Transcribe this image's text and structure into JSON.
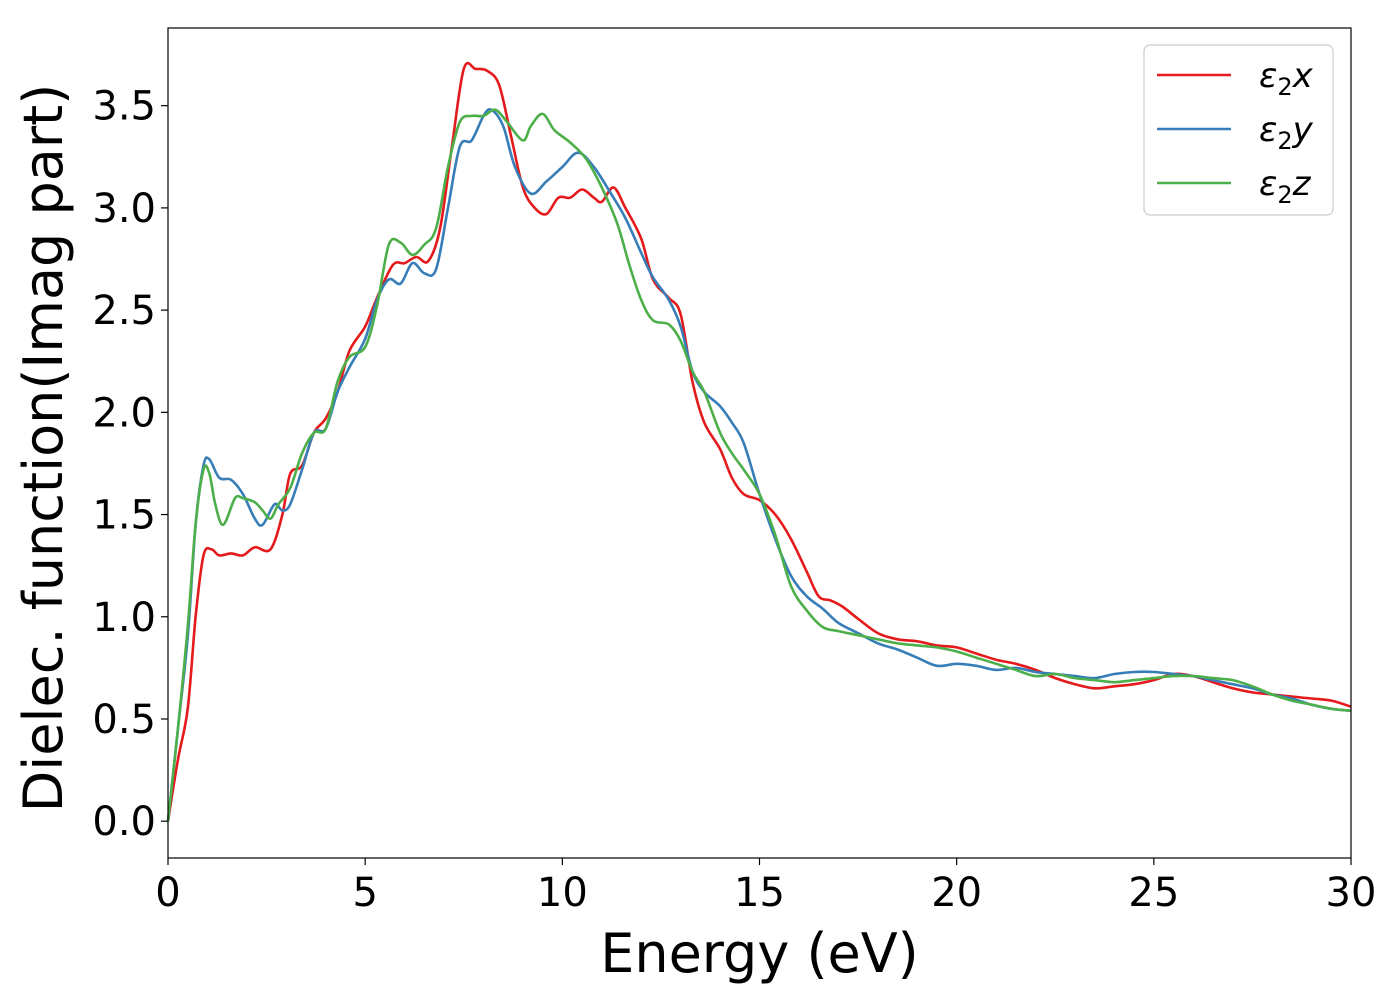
{
  "chart_data": {
    "type": "line",
    "title": "",
    "xlabel": "Energy (eV)",
    "ylabel": "Dielec. function(Imag part)",
    "xlim": [
      0,
      30
    ],
    "ylim": [
      -0.18,
      3.88
    ],
    "xticks": [
      0,
      5,
      10,
      15,
      20,
      25,
      30
    ],
    "xtick_labels": [
      "0",
      "5",
      "10",
      "15",
      "20",
      "25",
      "30"
    ],
    "yticks": [
      0.0,
      0.5,
      1.0,
      1.5,
      2.0,
      2.5,
      3.0,
      3.5
    ],
    "ytick_labels": [
      "0.0",
      "0.5",
      "1.0",
      "1.5",
      "2.0",
      "2.5",
      "3.0",
      "3.5"
    ],
    "grid": false,
    "legend_position": "top-right",
    "series": [
      {
        "name": "ε2x",
        "legend": {
          "base": "ε",
          "sub": "2",
          "suffix": "x"
        },
        "color": "#e41a1c",
        "points": [
          [
            0,
            0.0
          ],
          [
            0.25,
            0.3
          ],
          [
            0.5,
            0.55
          ],
          [
            0.7,
            1.0
          ],
          [
            0.9,
            1.3
          ],
          [
            1.1,
            1.33
          ],
          [
            1.3,
            1.3
          ],
          [
            1.6,
            1.31
          ],
          [
            1.9,
            1.3
          ],
          [
            2.2,
            1.34
          ],
          [
            2.6,
            1.33
          ],
          [
            2.9,
            1.5
          ],
          [
            3.1,
            1.7
          ],
          [
            3.4,
            1.74
          ],
          [
            3.7,
            1.9
          ],
          [
            4.0,
            1.97
          ],
          [
            4.3,
            2.1
          ],
          [
            4.6,
            2.3
          ],
          [
            5.0,
            2.42
          ],
          [
            5.3,
            2.56
          ],
          [
            5.7,
            2.72
          ],
          [
            6.0,
            2.73
          ],
          [
            6.3,
            2.76
          ],
          [
            6.6,
            2.74
          ],
          [
            6.9,
            2.9
          ],
          [
            7.2,
            3.3
          ],
          [
            7.5,
            3.68
          ],
          [
            7.8,
            3.68
          ],
          [
            8.1,
            3.67
          ],
          [
            8.4,
            3.6
          ],
          [
            8.7,
            3.35
          ],
          [
            9.0,
            3.1
          ],
          [
            9.3,
            3.0
          ],
          [
            9.6,
            2.97
          ],
          [
            9.9,
            3.05
          ],
          [
            10.2,
            3.05
          ],
          [
            10.5,
            3.09
          ],
          [
            10.8,
            3.05
          ],
          [
            11.0,
            3.03
          ],
          [
            11.3,
            3.1
          ],
          [
            11.6,
            3.0
          ],
          [
            12.0,
            2.85
          ],
          [
            12.3,
            2.65
          ],
          [
            12.7,
            2.56
          ],
          [
            13.0,
            2.48
          ],
          [
            13.3,
            2.15
          ],
          [
            13.6,
            1.95
          ],
          [
            14.0,
            1.82
          ],
          [
            14.3,
            1.68
          ],
          [
            14.6,
            1.6
          ],
          [
            15.0,
            1.57
          ],
          [
            15.4,
            1.5
          ],
          [
            15.8,
            1.38
          ],
          [
            16.2,
            1.22
          ],
          [
            16.5,
            1.1
          ],
          [
            16.8,
            1.08
          ],
          [
            17.1,
            1.05
          ],
          [
            17.5,
            0.99
          ],
          [
            18.0,
            0.92
          ],
          [
            18.5,
            0.89
          ],
          [
            19.0,
            0.88
          ],
          [
            19.5,
            0.86
          ],
          [
            20.0,
            0.85
          ],
          [
            20.5,
            0.82
          ],
          [
            21.0,
            0.79
          ],
          [
            21.5,
            0.77
          ],
          [
            22.0,
            0.74
          ],
          [
            22.5,
            0.7
          ],
          [
            23.0,
            0.67
          ],
          [
            23.5,
            0.65
          ],
          [
            24.0,
            0.66
          ],
          [
            24.5,
            0.67
          ],
          [
            25.0,
            0.69
          ],
          [
            25.5,
            0.72
          ],
          [
            26.0,
            0.71
          ],
          [
            26.5,
            0.68
          ],
          [
            27.0,
            0.65
          ],
          [
            27.5,
            0.63
          ],
          [
            28.0,
            0.62
          ],
          [
            28.5,
            0.61
          ],
          [
            29.0,
            0.6
          ],
          [
            29.5,
            0.59
          ],
          [
            30.0,
            0.56
          ]
        ]
      },
      {
        "name": "ε2y",
        "legend": {
          "base": "ε",
          "sub": "2",
          "suffix": "y"
        },
        "color": "#377eb8",
        "points": [
          [
            0,
            0.0
          ],
          [
            0.25,
            0.45
          ],
          [
            0.5,
            0.9
          ],
          [
            0.7,
            1.45
          ],
          [
            0.9,
            1.74
          ],
          [
            1.05,
            1.77
          ],
          [
            1.3,
            1.68
          ],
          [
            1.6,
            1.67
          ],
          [
            1.9,
            1.6
          ],
          [
            2.2,
            1.48
          ],
          [
            2.4,
            1.45
          ],
          [
            2.7,
            1.55
          ],
          [
            2.9,
            1.52
          ],
          [
            3.1,
            1.55
          ],
          [
            3.4,
            1.72
          ],
          [
            3.7,
            1.9
          ],
          [
            4.0,
            1.92
          ],
          [
            4.3,
            2.1
          ],
          [
            4.6,
            2.22
          ],
          [
            5.0,
            2.36
          ],
          [
            5.3,
            2.55
          ],
          [
            5.6,
            2.65
          ],
          [
            5.9,
            2.63
          ],
          [
            6.2,
            2.73
          ],
          [
            6.5,
            2.68
          ],
          [
            6.8,
            2.7
          ],
          [
            7.1,
            3.0
          ],
          [
            7.4,
            3.3
          ],
          [
            7.7,
            3.33
          ],
          [
            8.0,
            3.45
          ],
          [
            8.2,
            3.48
          ],
          [
            8.5,
            3.4
          ],
          [
            8.8,
            3.2
          ],
          [
            9.2,
            3.07
          ],
          [
            9.6,
            3.13
          ],
          [
            10.0,
            3.2
          ],
          [
            10.4,
            3.27
          ],
          [
            10.8,
            3.2
          ],
          [
            11.2,
            3.08
          ],
          [
            11.6,
            2.95
          ],
          [
            12.0,
            2.78
          ],
          [
            12.3,
            2.66
          ],
          [
            12.7,
            2.55
          ],
          [
            13.0,
            2.42
          ],
          [
            13.3,
            2.2
          ],
          [
            13.6,
            2.1
          ],
          [
            14.0,
            2.03
          ],
          [
            14.3,
            1.95
          ],
          [
            14.6,
            1.85
          ],
          [
            15.0,
            1.6
          ],
          [
            15.4,
            1.38
          ],
          [
            15.8,
            1.2
          ],
          [
            16.2,
            1.1
          ],
          [
            16.6,
            1.04
          ],
          [
            17.0,
            0.97
          ],
          [
            17.5,
            0.92
          ],
          [
            18.0,
            0.87
          ],
          [
            18.5,
            0.84
          ],
          [
            19.0,
            0.8
          ],
          [
            19.5,
            0.76
          ],
          [
            20.0,
            0.77
          ],
          [
            20.5,
            0.76
          ],
          [
            21.0,
            0.74
          ],
          [
            21.5,
            0.75
          ],
          [
            22.0,
            0.73
          ],
          [
            22.5,
            0.72
          ],
          [
            23.0,
            0.71
          ],
          [
            23.5,
            0.7
          ],
          [
            24.0,
            0.72
          ],
          [
            24.5,
            0.73
          ],
          [
            25.0,
            0.73
          ],
          [
            25.5,
            0.72
          ],
          [
            26.0,
            0.71
          ],
          [
            26.5,
            0.69
          ],
          [
            27.0,
            0.67
          ],
          [
            27.5,
            0.65
          ],
          [
            28.0,
            0.62
          ],
          [
            28.5,
            0.6
          ],
          [
            29.0,
            0.57
          ],
          [
            29.5,
            0.55
          ],
          [
            30.0,
            0.54
          ]
        ]
      },
      {
        "name": "ε2z",
        "legend": {
          "base": "ε",
          "sub": "2",
          "suffix": "z"
        },
        "color": "#4daf4a",
        "points": [
          [
            0,
            0.0
          ],
          [
            0.25,
            0.45
          ],
          [
            0.5,
            0.95
          ],
          [
            0.7,
            1.45
          ],
          [
            0.9,
            1.72
          ],
          [
            1.05,
            1.7
          ],
          [
            1.2,
            1.55
          ],
          [
            1.4,
            1.45
          ],
          [
            1.7,
            1.58
          ],
          [
            1.9,
            1.58
          ],
          [
            2.2,
            1.56
          ],
          [
            2.4,
            1.52
          ],
          [
            2.6,
            1.48
          ],
          [
            2.8,
            1.55
          ],
          [
            3.1,
            1.63
          ],
          [
            3.4,
            1.8
          ],
          [
            3.7,
            1.9
          ],
          [
            4.0,
            1.92
          ],
          [
            4.3,
            2.15
          ],
          [
            4.6,
            2.27
          ],
          [
            5.0,
            2.32
          ],
          [
            5.3,
            2.52
          ],
          [
            5.6,
            2.82
          ],
          [
            5.9,
            2.83
          ],
          [
            6.2,
            2.77
          ],
          [
            6.5,
            2.82
          ],
          [
            6.8,
            2.9
          ],
          [
            7.1,
            3.2
          ],
          [
            7.4,
            3.42
          ],
          [
            7.7,
            3.45
          ],
          [
            8.0,
            3.45
          ],
          [
            8.3,
            3.48
          ],
          [
            8.6,
            3.42
          ],
          [
            9.0,
            3.33
          ],
          [
            9.2,
            3.4
          ],
          [
            9.5,
            3.46
          ],
          [
            9.8,
            3.38
          ],
          [
            10.2,
            3.32
          ],
          [
            10.6,
            3.24
          ],
          [
            11.0,
            3.1
          ],
          [
            11.4,
            2.92
          ],
          [
            11.7,
            2.72
          ],
          [
            12.0,
            2.55
          ],
          [
            12.3,
            2.45
          ],
          [
            12.7,
            2.43
          ],
          [
            13.0,
            2.35
          ],
          [
            13.3,
            2.2
          ],
          [
            13.6,
            2.1
          ],
          [
            14.0,
            1.9
          ],
          [
            14.3,
            1.8
          ],
          [
            14.6,
            1.72
          ],
          [
            15.0,
            1.6
          ],
          [
            15.4,
            1.4
          ],
          [
            15.8,
            1.15
          ],
          [
            16.2,
            1.03
          ],
          [
            16.6,
            0.95
          ],
          [
            17.0,
            0.93
          ],
          [
            17.5,
            0.91
          ],
          [
            18.0,
            0.89
          ],
          [
            18.5,
            0.87
          ],
          [
            19.0,
            0.86
          ],
          [
            19.5,
            0.85
          ],
          [
            20.0,
            0.83
          ],
          [
            20.5,
            0.8
          ],
          [
            21.0,
            0.77
          ],
          [
            21.5,
            0.74
          ],
          [
            22.0,
            0.71
          ],
          [
            22.5,
            0.72
          ],
          [
            23.0,
            0.7
          ],
          [
            23.5,
            0.69
          ],
          [
            24.0,
            0.68
          ],
          [
            24.5,
            0.69
          ],
          [
            25.0,
            0.7
          ],
          [
            25.5,
            0.71
          ],
          [
            26.0,
            0.71
          ],
          [
            26.5,
            0.7
          ],
          [
            27.0,
            0.69
          ],
          [
            27.5,
            0.66
          ],
          [
            28.0,
            0.62
          ],
          [
            28.5,
            0.59
          ],
          [
            29.0,
            0.57
          ],
          [
            29.5,
            0.55
          ],
          [
            30.0,
            0.54
          ]
        ]
      }
    ]
  }
}
